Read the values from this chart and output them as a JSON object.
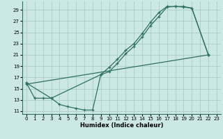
{
  "xlabel": "Humidex (Indice chaleur)",
  "bg_color": "#cce8e4",
  "grid_color": "#aacccc",
  "line_color": "#2e7060",
  "xlim": [
    -0.5,
    23.5
  ],
  "ylim": [
    10.5,
    30.5
  ],
  "xticks": [
    0,
    1,
    2,
    3,
    4,
    5,
    6,
    7,
    8,
    9,
    10,
    11,
    12,
    13,
    14,
    15,
    16,
    17,
    18,
    19,
    20,
    21,
    22,
    23
  ],
  "yticks": [
    11,
    13,
    15,
    17,
    19,
    21,
    23,
    25,
    27,
    29
  ],
  "line1_x": [
    0,
    1,
    2,
    3,
    4,
    5,
    6,
    7,
    8,
    9,
    10,
    11,
    12,
    13,
    14,
    15,
    16,
    17,
    18,
    19,
    20,
    22
  ],
  "line1_y": [
    16,
    13.3,
    13.3,
    13.3,
    12.2,
    11.8,
    11.5,
    11.2,
    11.2,
    17.5,
    18.0,
    19.5,
    21.2,
    22.5,
    24.2,
    26.2,
    27.8,
    29.5,
    29.6,
    29.5,
    29.3,
    21.0
  ],
  "line2_x": [
    0,
    3,
    9,
    10,
    11,
    12,
    13,
    14,
    15,
    16,
    17,
    18,
    19,
    20,
    22
  ],
  "line2_y": [
    16,
    13.3,
    17.5,
    18.8,
    20.2,
    21.8,
    23.0,
    24.8,
    26.8,
    28.5,
    29.6,
    29.6,
    29.6,
    29.3,
    21.0
  ],
  "line3_x": [
    0,
    22
  ],
  "line3_y": [
    15.8,
    21.0
  ]
}
